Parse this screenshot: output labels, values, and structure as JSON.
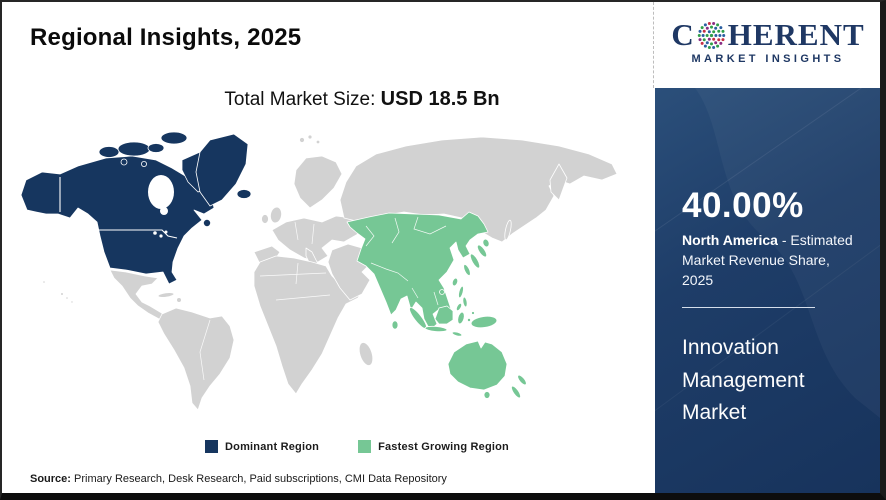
{
  "header": {
    "title": "Regional Insights, 2025"
  },
  "logo": {
    "word_pre": "C",
    "word_post": "HERENT",
    "tagline": "MARKET INSIGHTS"
  },
  "market": {
    "label": "Total Market Size:",
    "value": "USD 18.5 Bn"
  },
  "map": {
    "legend": [
      {
        "label": "Dominant Region",
        "color": "#16365f"
      },
      {
        "label": "Fastest Growing Region",
        "color": "#76c795"
      }
    ]
  },
  "sidebar": {
    "share_value": "40.00%",
    "share_region": "North America",
    "share_desc": " - Estimated Market Revenue Share, 2025",
    "market_name": "Innovation Management Market"
  },
  "source": {
    "label": "Source:",
    "text": " Primary Research, Desk Research, Paid subscriptions, CMI Data Repository"
  },
  "colors": {
    "dominant_region": "#16365f",
    "fastest_growing_region": "#76c795",
    "other_land": "#d2d2d2",
    "sidebar_bg": "#1d3c67",
    "logo_navy": "#1f3864"
  }
}
